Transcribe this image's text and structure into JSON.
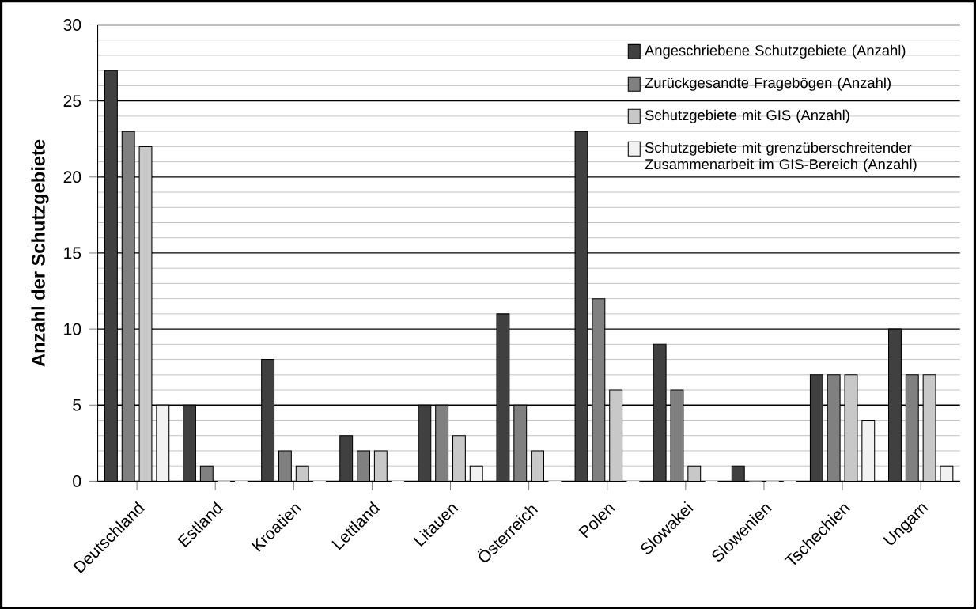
{
  "chart_data": {
    "type": "bar",
    "ylabel": "**Anzahl der Schutzgebiete**",
    "categories": [
      "Deutschland",
      "Estland",
      "Kroatien",
      "Lettland",
      "Litauen",
      "Österreich",
      "Polen",
      "Slowakei",
      "Slowenien",
      "Tschechien",
      "Ungarn"
    ],
    "series": [
      {
        "name": "Angeschriebene Schutzgebiete (Anzahl)",
        "color": "#404040",
        "values": [
          27,
          5,
          8,
          3,
          5,
          11,
          23,
          9,
          1,
          7,
          10
        ]
      },
      {
        "name": "Zurückgesandte Fragebögen (Anzahl)",
        "color": "#808080",
        "values": [
          23,
          1,
          2,
          2,
          5,
          5,
          12,
          6,
          0,
          7,
          7
        ]
      },
      {
        "name": "Schutzgebiete mit GIS (Anzahl)",
        "color": "#c8c8c8",
        "values": [
          22,
          0,
          1,
          2,
          3,
          2,
          6,
          1,
          0,
          7,
          7
        ]
      },
      {
        "name": "Schutzgebiete mit grenzüberschreitender Zusammenarbeit im GIS-Bereich (Anzahl)",
        "color": "#f2f2f2",
        "values": [
          5,
          0,
          0,
          0,
          1,
          0,
          0,
          0,
          0,
          4,
          1
        ]
      }
    ],
    "ylim": [
      0,
      30
    ],
    "yticks": [
      0,
      5,
      10,
      15,
      20,
      25,
      30
    ],
    "grid": "y",
    "legend": "top right"
  }
}
